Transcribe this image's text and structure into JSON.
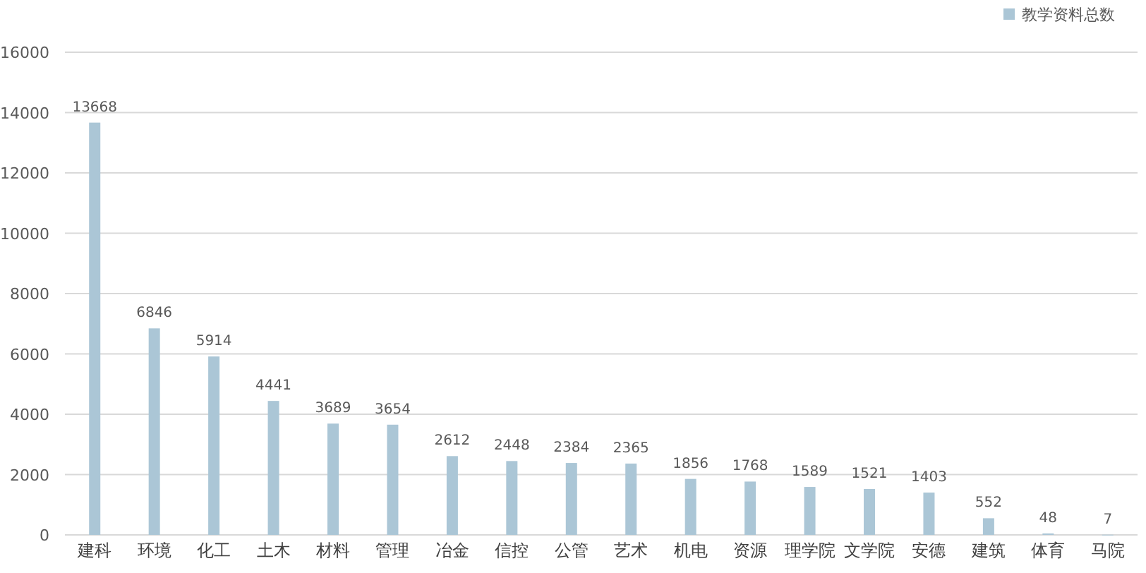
{
  "chart_data": {
    "type": "bar",
    "categories": [
      "建科",
      "环境",
      "化工",
      "土木",
      "材料",
      "管理",
      "冶金",
      "信控",
      "公管",
      "艺术",
      "机电",
      "资源",
      "理学院",
      "文学院",
      "安德",
      "建筑",
      "体育",
      "马院"
    ],
    "series": [
      {
        "name": "教学资料总数",
        "color": "#abc6d6",
        "values": [
          13668,
          6846,
          5914,
          4441,
          3689,
          3654,
          2612,
          2448,
          2384,
          2365,
          1856,
          1768,
          1589,
          1521,
          1403,
          552,
          48,
          7
        ]
      }
    ],
    "ylim": [
      0,
      16000
    ],
    "yticks": [
      0,
      2000,
      4000,
      6000,
      8000,
      10000,
      12000,
      14000,
      16000
    ],
    "grid": "y",
    "legend": "top right",
    "data_labels": true
  }
}
